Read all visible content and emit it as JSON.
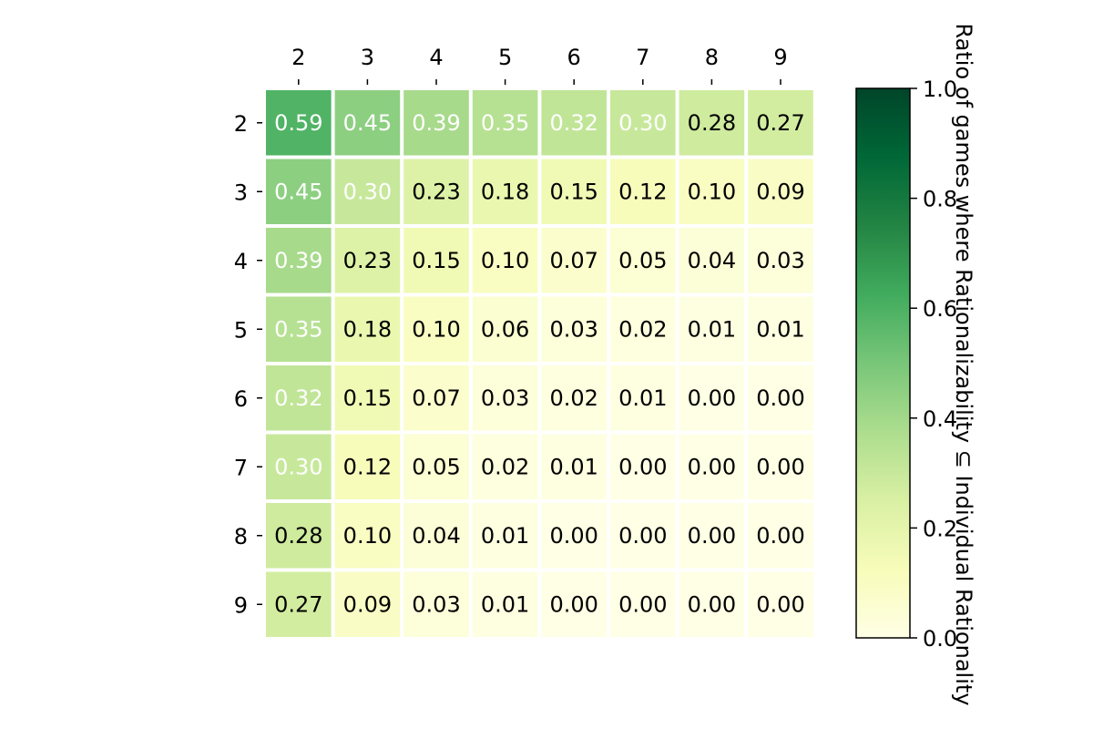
{
  "chart_data": {
    "type": "heatmap",
    "title": "",
    "xlabel": "",
    "ylabel": "",
    "x_categories": [
      "2",
      "3",
      "4",
      "5",
      "6",
      "7",
      "8",
      "9"
    ],
    "y_categories": [
      "2",
      "3",
      "4",
      "5",
      "6",
      "7",
      "8",
      "9"
    ],
    "x_tick_position": "top",
    "values": [
      [
        0.59,
        0.45,
        0.39,
        0.35,
        0.32,
        0.3,
        0.28,
        0.27
      ],
      [
        0.45,
        0.3,
        0.23,
        0.18,
        0.15,
        0.12,
        0.1,
        0.09
      ],
      [
        0.39,
        0.23,
        0.15,
        0.1,
        0.07,
        0.05,
        0.04,
        0.03
      ],
      [
        0.35,
        0.18,
        0.1,
        0.06,
        0.03,
        0.02,
        0.01,
        0.01
      ],
      [
        0.32,
        0.15,
        0.07,
        0.03,
        0.02,
        0.01,
        0.0,
        0.0
      ],
      [
        0.3,
        0.12,
        0.05,
        0.02,
        0.01,
        0.0,
        0.0,
        0.0
      ],
      [
        0.28,
        0.1,
        0.04,
        0.01,
        0.0,
        0.0,
        0.0,
        0.0
      ],
      [
        0.27,
        0.09,
        0.03,
        0.01,
        0.0,
        0.0,
        0.0,
        0.0
      ]
    ],
    "value_format": "0.00",
    "colormap": "YlGn",
    "colorbar": {
      "label": "Ratio of games where Rationalizability ⊆ Individual Rationality",
      "range": [
        0.0,
        1.0
      ],
      "ticks": [
        "0.0",
        "0.2",
        "0.4",
        "0.6",
        "0.8",
        "1.0"
      ]
    },
    "grid": false,
    "legend": "none"
  }
}
